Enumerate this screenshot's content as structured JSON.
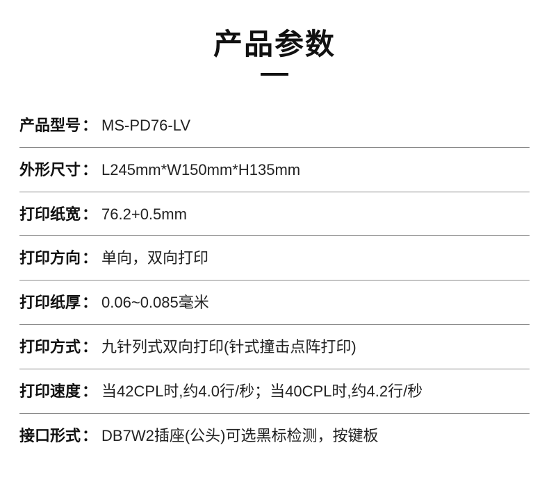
{
  "title": "产品参数",
  "title_fontsize": 42,
  "title_color": "#111111",
  "underline_width": 40,
  "underline_color": "#111111",
  "background_color": "#ffffff",
  "divider_color": "#888888",
  "label_fontsize": 22,
  "label_weight": 700,
  "value_fontsize": 22,
  "value_weight": 400,
  "colon": "：",
  "specs": [
    {
      "label": "产品型号",
      "value": "MS-PD76-LV"
    },
    {
      "label": "外形尺寸",
      "value": "L245mm*W150mm*H135mm"
    },
    {
      "label": "打印纸宽",
      "value": "76.2+0.5mm"
    },
    {
      "label": "打印方向",
      "value": "单向，双向打印"
    },
    {
      "label": "打印纸厚",
      "value": "0.06~0.085毫米"
    },
    {
      "label": "打印方式",
      "value": "九针列式双向打印(针式撞击点阵打印)"
    },
    {
      "label": "打印速度",
      "value": "当42CPL时,约4.0行/秒；当40CPL时,约4.2行/秒"
    },
    {
      "label": "接口形式",
      "value": "DB7W2插座(公头)可选黑标检测，按键板"
    }
  ]
}
